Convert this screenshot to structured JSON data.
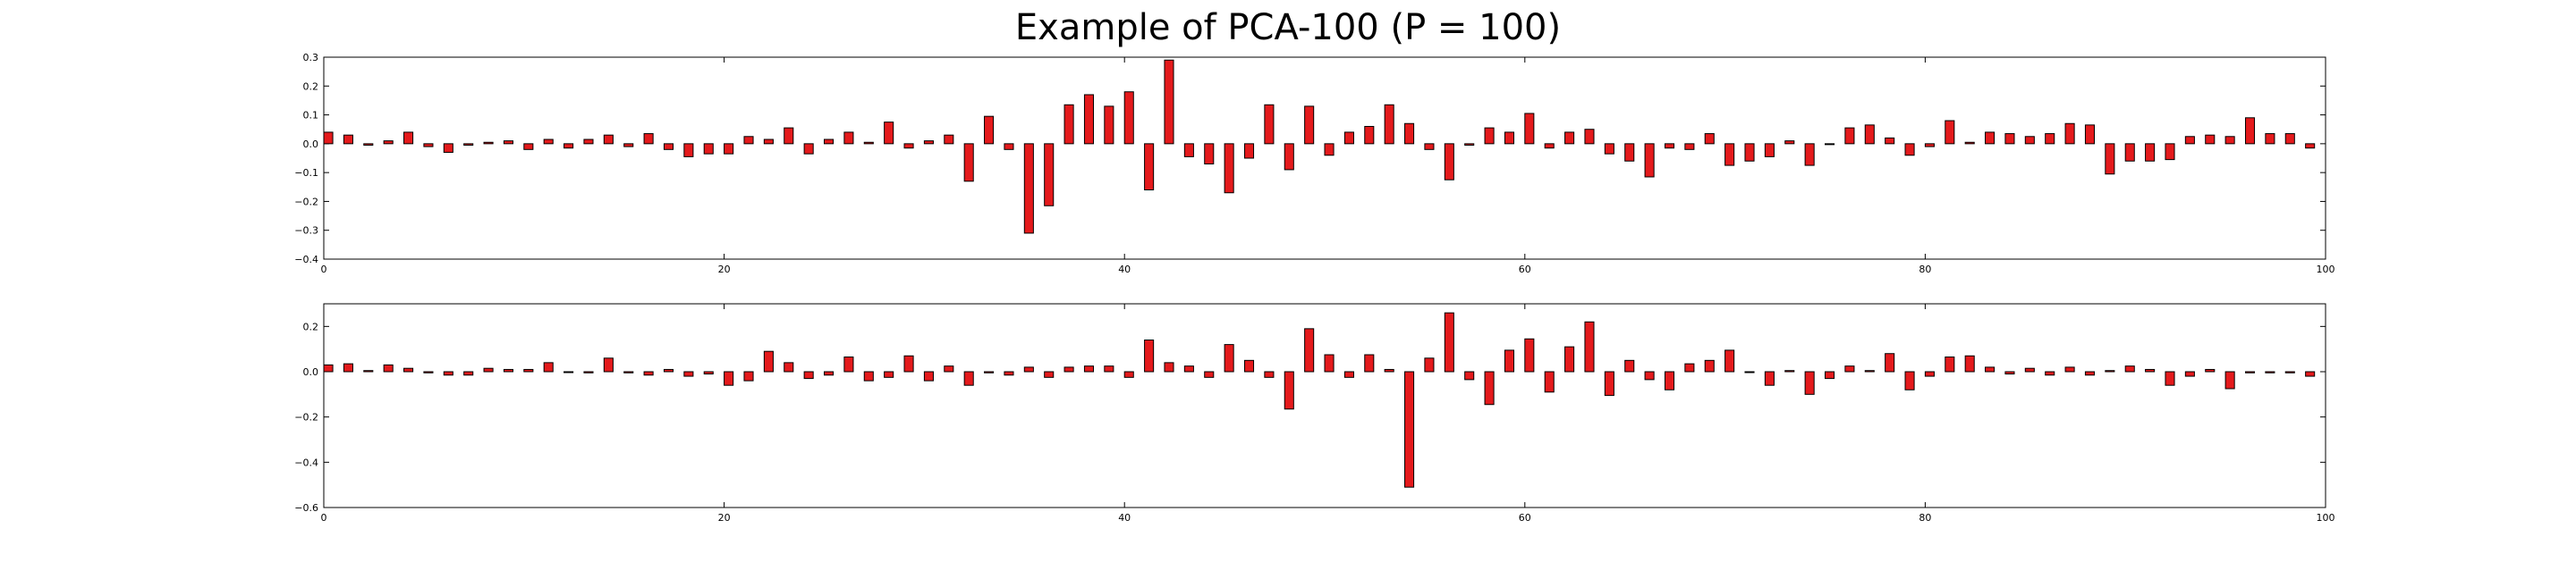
{
  "title": "Example of PCA-100 (P = 100)",
  "chart_data": [
    {
      "type": "bar",
      "xlim": [
        0,
        100
      ],
      "ylim": [
        -0.4,
        0.3
      ],
      "xticks": [
        0,
        20,
        40,
        60,
        80,
        100
      ],
      "yticks": [
        -0.4,
        -0.3,
        -0.2,
        -0.1,
        0.0,
        0.1,
        0.2,
        0.3
      ],
      "ytick_labels": [
        "−0.4",
        "−0.3",
        "−0.2",
        "−0.1",
        "0.0",
        "0.1",
        "0.2",
        "0.3"
      ],
      "bar_color": "#e41a1c",
      "x": [
        0,
        1,
        2,
        3,
        4,
        5,
        6,
        7,
        8,
        9,
        10,
        11,
        12,
        13,
        14,
        15,
        16,
        17,
        18,
        19,
        20,
        21,
        22,
        23,
        24,
        25,
        26,
        27,
        28,
        29,
        30,
        31,
        32,
        33,
        34,
        35,
        36,
        37,
        38,
        39,
        40,
        41,
        42,
        43,
        44,
        45,
        46,
        47,
        48,
        49,
        50,
        51,
        52,
        53,
        54,
        55,
        56,
        57,
        58,
        59,
        60,
        61,
        62,
        63,
        64,
        65,
        66,
        67,
        68,
        69,
        70,
        71,
        72,
        73,
        74,
        75,
        76,
        77,
        78,
        79,
        80,
        81,
        82,
        83,
        84,
        85,
        86,
        87,
        88,
        89,
        90,
        91,
        92,
        93,
        94,
        95,
        96,
        97,
        98,
        99
      ],
      "values": [
        0.04,
        0.03,
        -0.005,
        0.01,
        0.04,
        -0.01,
        -0.03,
        -0.005,
        0.005,
        0.01,
        -0.02,
        0.015,
        -0.015,
        0.015,
        0.03,
        -0.01,
        0.035,
        -0.02,
        -0.045,
        -0.035,
        -0.035,
        0.025,
        0.015,
        0.055,
        -0.035,
        0.015,
        0.04,
        0.005,
        0.075,
        -0.015,
        0.01,
        0.03,
        -0.13,
        0.095,
        -0.02,
        -0.31,
        -0.215,
        0.135,
        0.17,
        0.13,
        0.18,
        -0.16,
        0.29,
        -0.045,
        -0.07,
        -0.17,
        -0.05,
        0.135,
        -0.09,
        0.13,
        -0.04,
        0.04,
        0.06,
        0.135,
        0.07,
        -0.02,
        -0.125,
        -0.005,
        0.055,
        0.04,
        0.105,
        -0.015,
        0.04,
        0.05,
        -0.035,
        -0.06,
        -0.115,
        -0.015,
        -0.02,
        0.035,
        -0.075,
        -0.06,
        -0.045,
        0.01,
        -0.075,
        0.0,
        0.055,
        0.065,
        0.02,
        -0.04,
        -0.01,
        0.08,
        0.005,
        0.04,
        0.035,
        0.025,
        0.035,
        0.07,
        0.065,
        -0.105,
        -0.06,
        -0.06,
        -0.055,
        0.025,
        0.03,
        0.025,
        0.09,
        0.035,
        0.035,
        -0.015
      ]
    },
    {
      "type": "bar",
      "xlim": [
        0,
        100
      ],
      "ylim": [
        -0.6,
        0.3
      ],
      "xticks": [
        0,
        20,
        40,
        60,
        80,
        100
      ],
      "yticks": [
        -0.6,
        -0.4,
        -0.2,
        0.0,
        0.2
      ],
      "ytick_labels": [
        "−0.6",
        "−0.4",
        "−0.2",
        "0.0",
        "0.2"
      ],
      "bar_color": "#e41a1c",
      "x": [
        0,
        1,
        2,
        3,
        4,
        5,
        6,
        7,
        8,
        9,
        10,
        11,
        12,
        13,
        14,
        15,
        16,
        17,
        18,
        19,
        20,
        21,
        22,
        23,
        24,
        25,
        26,
        27,
        28,
        29,
        30,
        31,
        32,
        33,
        34,
        35,
        36,
        37,
        38,
        39,
        40,
        41,
        42,
        43,
        44,
        45,
        46,
        47,
        48,
        49,
        50,
        51,
        52,
        53,
        54,
        55,
        56,
        57,
        58,
        59,
        60,
        61,
        62,
        63,
        64,
        65,
        66,
        67,
        68,
        69,
        70,
        71,
        72,
        73,
        74,
        75,
        76,
        77,
        78,
        79,
        80,
        81,
        82,
        83,
        84,
        85,
        86,
        87,
        88,
        89,
        90,
        91,
        92,
        93,
        94,
        95,
        96,
        97,
        98,
        99
      ],
      "values": [
        0.03,
        0.035,
        0.005,
        0.03,
        0.015,
        -0.005,
        -0.015,
        -0.015,
        0.015,
        0.01,
        0.01,
        0.04,
        0.0,
        -0.005,
        0.06,
        -0.005,
        -0.015,
        0.01,
        -0.02,
        -0.01,
        -0.06,
        -0.04,
        0.09,
        0.04,
        -0.03,
        -0.015,
        0.065,
        -0.04,
        -0.025,
        0.07,
        -0.04,
        0.025,
        -0.06,
        -0.005,
        -0.015,
        0.02,
        -0.025,
        0.02,
        0.025,
        0.025,
        -0.025,
        0.14,
        0.04,
        0.025,
        -0.025,
        0.12,
        0.05,
        -0.025,
        -0.165,
        0.19,
        0.075,
        -0.025,
        0.075,
        0.01,
        -0.51,
        0.06,
        0.26,
        -0.035,
        -0.145,
        0.095,
        0.145,
        -0.09,
        0.11,
        0.22,
        -0.105,
        0.05,
        -0.035,
        -0.08,
        0.035,
        0.05,
        0.095,
        0.0,
        -0.06,
        0.005,
        -0.1,
        -0.03,
        0.025,
        0.005,
        0.08,
        -0.08,
        -0.02,
        0.065,
        0.07,
        0.02,
        -0.01,
        0.015,
        -0.015,
        0.02,
        -0.015,
        0.005,
        0.025,
        0.01,
        -0.06,
        -0.02,
        0.01,
        -0.075,
        -0.005,
        -0.005,
        -0.005,
        -0.02
      ]
    }
  ]
}
